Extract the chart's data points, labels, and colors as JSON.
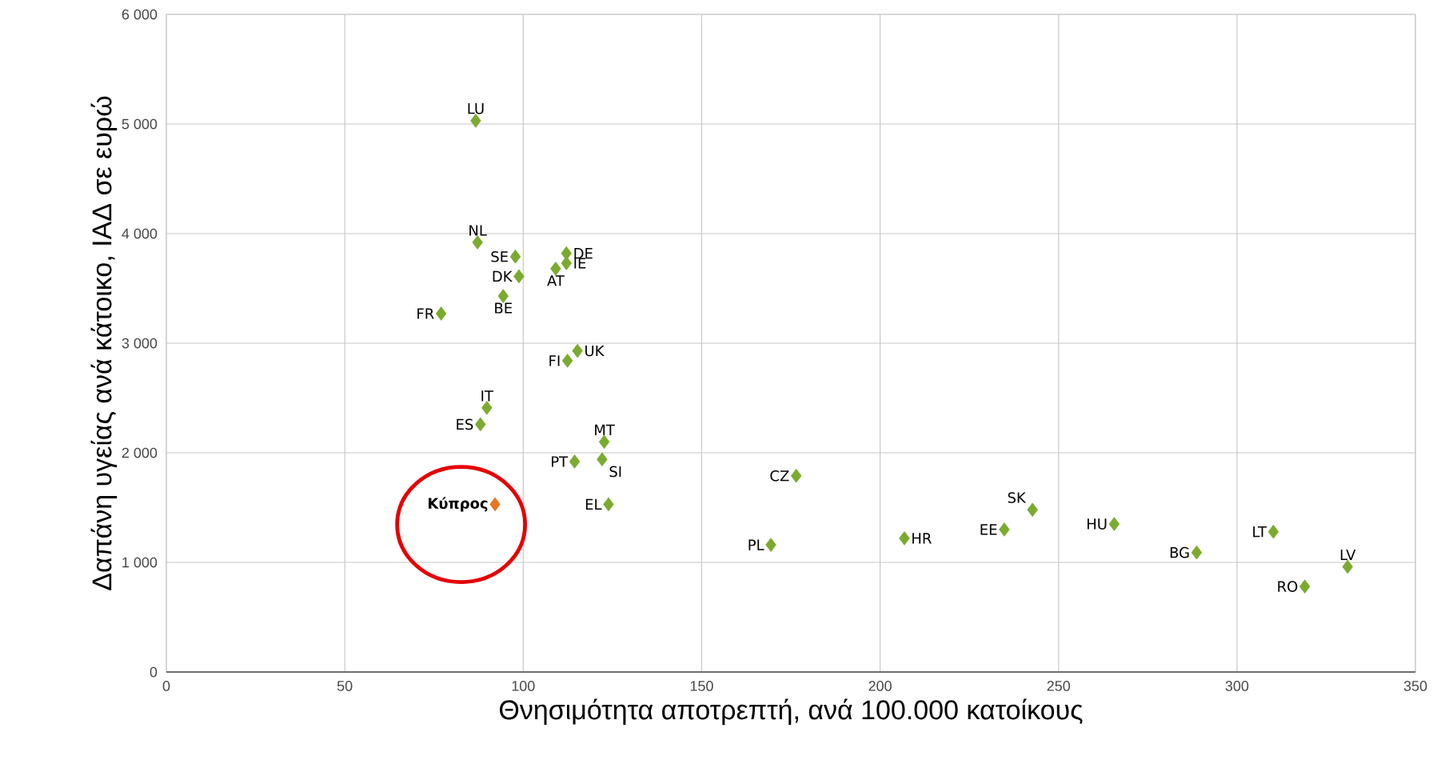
{
  "chart_data": {
    "type": "scatter",
    "xlabel": "Θνησιμότητα αποτρεπτή, ανά 100.000 κατοίκους",
    "ylabel": "Δαπάνη υγείας ανά κάτοικο, ΙΑΔ σε ευρώ",
    "xlim": [
      0,
      350
    ],
    "xticks": [
      0,
      50,
      100,
      150,
      200,
      250,
      300,
      350
    ],
    "ylim": [
      0,
      6000
    ],
    "yticks": [
      0,
      {
        "value": 1000,
        "label": "1 000"
      },
      {
        "value": 2000,
        "label": "2 000"
      },
      {
        "value": 3000,
        "label": "3 000"
      },
      {
        "value": 4000,
        "label": "4 000"
      },
      {
        "value": 5000,
        "label": "5 000"
      },
      {
        "value": 6000,
        "label": "6 000"
      }
    ],
    "grid": true,
    "marker": "diamond",
    "series": [
      {
        "color": "#7aab2e",
        "x": [
          86.7,
          87.2,
          97.8,
          112.1,
          112.1,
          109.1,
          98.8,
          94.4,
          77,
          115.2,
          112.4,
          89.8,
          88,
          122.7,
          114.4,
          122.1,
          123.9,
          176.5,
          169.4,
          206.8,
          234.8,
          242.7,
          265.6,
          288.7,
          310.2,
          331,
          319
        ],
        "values": [
          5030,
          3920,
          3790,
          3820,
          3730,
          3680,
          3610,
          3430,
          3270,
          2930,
          2840,
          2410,
          2260,
          2100,
          1920,
          1940,
          1530,
          1790,
          1160,
          1220,
          1300,
          1480,
          1350,
          1090,
          1280,
          960,
          780
        ]
      },
      {
        "color": "#e87722",
        "x": [
          92.1
        ],
        "values": [
          1530
        ]
      }
    ],
    "annotations": [
      {
        "text": "LU",
        "x": 86.7,
        "y": 5030
      },
      {
        "text": "NL",
        "x": 87.2,
        "y": 3920
      },
      {
        "text": "SE",
        "x": 97.8,
        "y": 3790
      },
      {
        "text": "DE",
        "x": 112.1,
        "y": 3820
      },
      {
        "text": "IE",
        "x": 112.1,
        "y": 3730
      },
      {
        "text": "AT",
        "x": 109.1,
        "y": 3680
      },
      {
        "text": "DK",
        "x": 98.8,
        "y": 3610
      },
      {
        "text": "BE",
        "x": 94.4,
        "y": 3430
      },
      {
        "text": "FR",
        "x": 77,
        "y": 3270
      },
      {
        "text": "UK",
        "x": 115.2,
        "y": 2930
      },
      {
        "text": "FI",
        "x": 112.4,
        "y": 2840
      },
      {
        "text": "IT",
        "x": 89.8,
        "y": 2410
      },
      {
        "text": "ES",
        "x": 88,
        "y": 2260
      },
      {
        "text": "MT",
        "x": 122.7,
        "y": 2100
      },
      {
        "text": "PT",
        "x": 114.4,
        "y": 1920
      },
      {
        "text": "SI",
        "x": 122.1,
        "y": 1940
      },
      {
        "text": "EL",
        "x": 123.9,
        "y": 1530
      },
      {
        "text": "CZ",
        "x": 176.5,
        "y": 1790
      },
      {
        "text": "PL",
        "x": 169.4,
        "y": 1160
      },
      {
        "text": "HR",
        "x": 206.8,
        "y": 1220
      },
      {
        "text": "EE",
        "x": 234.8,
        "y": 1300
      },
      {
        "text": "SK",
        "x": 242.7,
        "y": 1480
      },
      {
        "text": "HU",
        "x": 265.6,
        "y": 1350
      },
      {
        "text": "BG",
        "x": 288.7,
        "y": 1090
      },
      {
        "text": "LT",
        "x": 310.2,
        "y": 1280
      },
      {
        "text": "LV",
        "x": 331,
        "y": 960
      },
      {
        "text": "RO",
        "x": 319,
        "y": 780
      },
      {
        "text": "Κύπρος",
        "x": 92.1,
        "y": 1530
      }
    ]
  }
}
